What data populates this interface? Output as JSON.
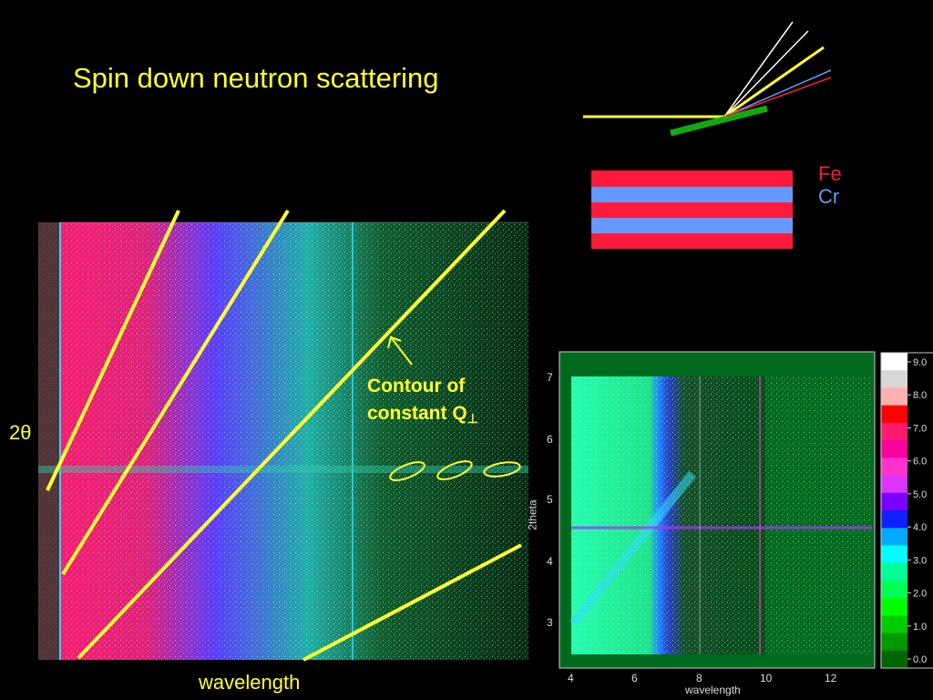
{
  "title": "Spin down neutron scattering",
  "legend": {
    "fe": "Fe",
    "cr": "Cr",
    "fe_color": "#ff1a3c",
    "cr_color": "#6699ff"
  },
  "annotation": {
    "line1": "Contour of",
    "line2": "constant Q",
    "subscript": "⊥"
  },
  "left_plot": {
    "xlabel": "wavelength",
    "ylabel": "2θ"
  },
  "right_plot": {
    "xlabel": "wavelength",
    "ylabel": "2theta",
    "xticks": [
      "4",
      "6",
      "8",
      "10",
      "12"
    ],
    "yticks": [
      "3",
      "4",
      "5",
      "6",
      "7"
    ]
  },
  "colorbar": {
    "ticks": [
      "9.0",
      "8.0",
      "7.0",
      "6.0",
      "5.0",
      "4.0",
      "3.0",
      "2.0",
      "1.0",
      "0.0"
    ],
    "colors": [
      "#ffffff",
      "#d8d8d8",
      "#ffb0b0",
      "#ff0000",
      "#ff1a6e",
      "#ff00a0",
      "#ff33cc",
      "#dd33ff",
      "#7a00ff",
      "#1020ff",
      "#00aaff",
      "#00ffff",
      "#00ff99",
      "#00ff55",
      "#00ff00",
      "#00cc00",
      "#009900",
      "#006600"
    ]
  }
}
